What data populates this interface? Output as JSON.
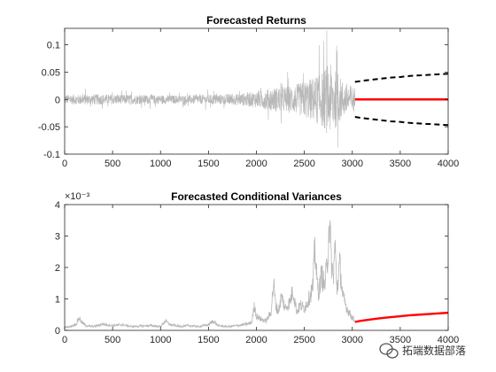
{
  "colors": {
    "history": "#b8b8b8",
    "forecast_mean": "#ff0000",
    "forecast_bounds": "#000000",
    "axes": "#262626"
  },
  "watermark": {
    "icon": "wechat-icon",
    "text": "拓端数据部落"
  },
  "chart_data": [
    {
      "type": "line",
      "title": "Forecasted Returns",
      "xlabel": "",
      "ylabel": "",
      "xlim": [
        0,
        4000
      ],
      "ylim": [
        -0.1,
        0.13
      ],
      "xticks": [
        0,
        500,
        1000,
        1500,
        2000,
        2500,
        3000,
        3500,
        4000
      ],
      "yticks": [
        -0.1,
        -0.05,
        0,
        0.05,
        0.1
      ],
      "ytick_labels": [
        "-0.1",
        "-0.05",
        "0",
        "0.05",
        "0.1"
      ],
      "grid": false,
      "history_range": [
        0,
        3028
      ],
      "forecast_range": [
        3028,
        4000
      ],
      "series": [
        {
          "style": "history",
          "x": [
            0,
            300,
            600,
            900,
            1200,
            1500,
            1800,
            2000,
            2200,
            2400,
            2500,
            2600,
            2700,
            2750,
            2800,
            2900,
            3028
          ],
          "amplitude": [
            0.012,
            0.013,
            0.012,
            0.011,
            0.01,
            0.012,
            0.014,
            0.02,
            0.03,
            0.035,
            0.045,
            0.055,
            0.07,
            0.09,
            0.08,
            0.045,
            0.03
          ]
        },
        {
          "style": "forecast_mean",
          "x": [
            3028,
            4000
          ],
          "values": [
            0,
            0
          ]
        },
        {
          "style": "forecast_upper",
          "x": [
            3028,
            3100,
            3200,
            3300,
            3400,
            3500,
            3600,
            3700,
            3800,
            3900,
            4000
          ],
          "values": [
            0.032,
            0.034,
            0.036,
            0.038,
            0.04,
            0.041,
            0.043,
            0.044,
            0.045,
            0.046,
            0.047
          ]
        },
        {
          "style": "forecast_lower",
          "x": [
            3028,
            3100,
            3200,
            3300,
            3400,
            3500,
            3600,
            3700,
            3800,
            3900,
            4000
          ],
          "values": [
            -0.032,
            -0.034,
            -0.036,
            -0.038,
            -0.04,
            -0.041,
            -0.043,
            -0.044,
            -0.045,
            -0.046,
            -0.047
          ]
        }
      ]
    },
    {
      "type": "line",
      "title": "Forecasted Conditional Variances",
      "xlabel": "",
      "ylabel": "",
      "y_exponent": "×10⁻³",
      "xlim": [
        0,
        4000
      ],
      "ylim": [
        0,
        4
      ],
      "xticks": [
        0,
        500,
        1000,
        1500,
        2000,
        2500,
        3000,
        3500,
        4000
      ],
      "yticks": [
        0,
        1,
        2,
        3,
        4
      ],
      "grid": false,
      "series": [
        {
          "style": "history",
          "x": [
            0,
            60,
            120,
            150,
            180,
            220,
            300,
            400,
            500,
            600,
            700,
            800,
            900,
            1000,
            1050,
            1100,
            1200,
            1300,
            1400,
            1500,
            1550,
            1600,
            1700,
            1800,
            1900,
            1950,
            1980,
            2000,
            2050,
            2100,
            2150,
            2180,
            2200,
            2230,
            2260,
            2300,
            2350,
            2380,
            2420,
            2460,
            2500,
            2530,
            2560,
            2590,
            2610,
            2630,
            2650,
            2680,
            2710,
            2740,
            2760,
            2780,
            2800,
            2820,
            2840,
            2870,
            2900,
            2930,
            2960,
            2990,
            3028
          ],
          "values": [
            0.1,
            0.12,
            0.2,
            0.4,
            0.25,
            0.15,
            0.12,
            0.2,
            0.15,
            0.18,
            0.12,
            0.14,
            0.15,
            0.12,
            0.3,
            0.18,
            0.13,
            0.15,
            0.12,
            0.18,
            0.3,
            0.15,
            0.12,
            0.15,
            0.2,
            0.25,
            0.8,
            0.45,
            0.35,
            0.3,
            0.55,
            1.5,
            0.8,
            0.6,
            1.1,
            0.7,
            0.9,
            1.3,
            0.6,
            0.8,
            0.7,
            0.9,
            1.1,
            1.4,
            2.7,
            1.6,
            1.2,
            1.8,
            1.4,
            2.1,
            3.6,
            2.3,
            1.6,
            2.7,
            1.3,
            2.1,
            1.1,
            0.8,
            0.6,
            0.45,
            0.3
          ]
        },
        {
          "style": "forecast_mean",
          "x": [
            3028,
            3100,
            3200,
            3300,
            3400,
            3500,
            3600,
            3700,
            3800,
            3900,
            4000
          ],
          "values": [
            0.27,
            0.31,
            0.35,
            0.39,
            0.42,
            0.45,
            0.48,
            0.5,
            0.52,
            0.54,
            0.56
          ]
        }
      ]
    }
  ]
}
